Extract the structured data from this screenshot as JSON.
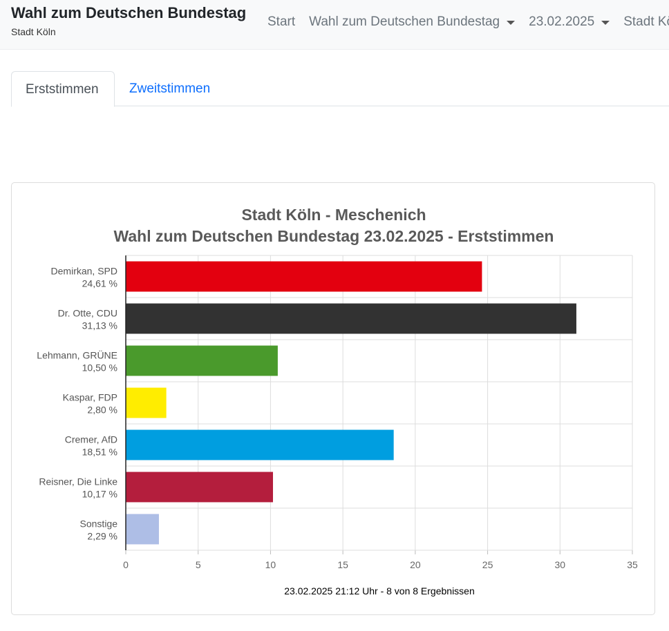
{
  "header": {
    "title": "Wahl zum Deutschen Bundestag",
    "subtitle": "Stadt Köln",
    "nav": [
      {
        "label": "Start",
        "dropdown": false
      },
      {
        "label": "Wahl zum Deutschen Bundestag",
        "dropdown": true
      },
      {
        "label": "23.02.2025",
        "dropdown": true
      },
      {
        "label": "Stadt Köln",
        "dropdown": false
      }
    ]
  },
  "tabs": [
    {
      "label": "Erststimmen",
      "active": true
    },
    {
      "label": "Zweitstimmen",
      "active": false
    }
  ],
  "chart_data": {
    "type": "bar",
    "orientation": "horizontal",
    "title": "Stadt Köln - Meschenich",
    "subtitle": "Wahl zum Deutschen Bundestag 23.02.2025  - Erststimmen",
    "categories": [
      {
        "name": "Demirkan, SPD",
        "label": "24,61 %"
      },
      {
        "name": "Dr. Otte, CDU",
        "label": "31,13 %"
      },
      {
        "name": "Lehmann, GRÜNE",
        "label": "10,50 %"
      },
      {
        "name": "Kaspar, FDP",
        "label": "2,80 %"
      },
      {
        "name": "Cremer, AfD",
        "label": "18,51 %"
      },
      {
        "name": "Reisner, Die Linke",
        "label": "10,17 %"
      },
      {
        "name": "Sonstige",
        "label": "2,29 %"
      }
    ],
    "values": [
      24.61,
      31.13,
      10.5,
      2.8,
      18.51,
      10.17,
      2.29
    ],
    "colors": [
      "#e3000f",
      "#323232",
      "#4a9a2c",
      "#ffed00",
      "#009ee0",
      "#b41e3d",
      "#aebee6"
    ],
    "xlim": [
      0,
      35
    ],
    "xticks": [
      "0",
      "5",
      "10",
      "15",
      "20",
      "25",
      "30",
      "35"
    ],
    "grid": true,
    "footer": "23.02.2025 21:12 Uhr - 8 von 8 Ergebnissen"
  }
}
